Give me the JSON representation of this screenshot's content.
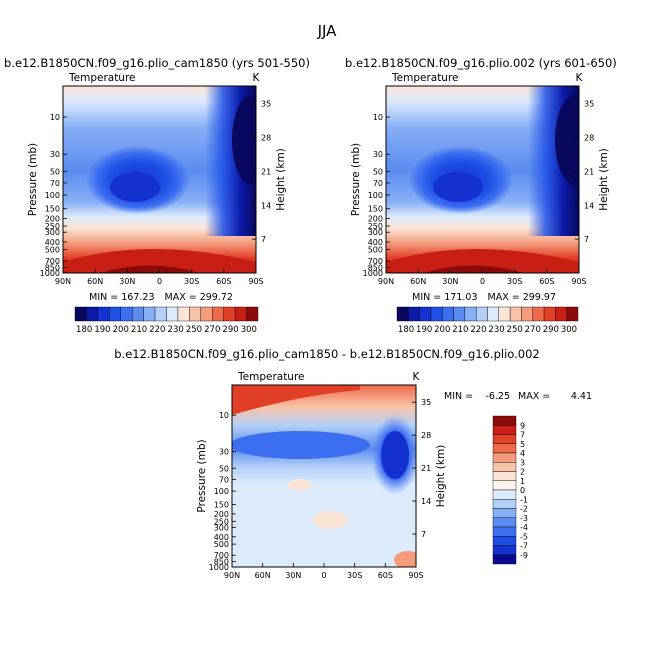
{
  "figure_title": "JJA",
  "chart_data": [
    {
      "type": "contour",
      "id": "panel1",
      "title": "b.e12.B1850CN.f09_g16.plio_cam1850 (yrs 501-550)",
      "field_label": "Temperature",
      "units": "K",
      "ylabel": "Pressure (mb)",
      "ylabel_right": "Height (km)",
      "x_ticks": [
        "90N",
        "60N",
        "30N",
        "0",
        "30S",
        "60S",
        "90S"
      ],
      "y_ticks": [
        "10",
        "30",
        "50",
        "70",
        "100",
        "150",
        "200",
        "250",
        "300",
        "400",
        "500",
        "700",
        "850",
        "1000"
      ],
      "y_ticks_right": [
        "35",
        "28",
        "21",
        "14",
        "7"
      ],
      "min_label": "MIN = 167.23",
      "max_label": "MAX = 299.72",
      "min": 167.23,
      "max": 299.72,
      "colorbar_labels": [
        "180",
        "190",
        "200",
        "210",
        "220",
        "230",
        "250",
        "270",
        "290",
        "300"
      ]
    },
    {
      "type": "contour",
      "id": "panel2",
      "title": "b.e12.B1850CN.f09_g16.plio.002 (yrs 601-650)",
      "field_label": "Temperature",
      "units": "K",
      "ylabel": "Pressure (mb)",
      "ylabel_right": "Height (km)",
      "x_ticks": [
        "90N",
        "60N",
        "30N",
        "0",
        "30S",
        "60S",
        "90S"
      ],
      "y_ticks": [
        "10",
        "30",
        "50",
        "70",
        "100",
        "150",
        "200",
        "250",
        "300",
        "400",
        "500",
        "700",
        "850",
        "1000"
      ],
      "y_ticks_right": [
        "35",
        "28",
        "21",
        "14",
        "7"
      ],
      "min_label": "MIN = 171.03",
      "max_label": "MAX = 299.97",
      "min": 171.03,
      "max": 299.97,
      "colorbar_labels": [
        "180",
        "190",
        "200",
        "210",
        "220",
        "230",
        "250",
        "270",
        "290",
        "300"
      ]
    },
    {
      "type": "contour",
      "id": "diff",
      "title": "b.e12.B1850CN.f09_g16.plio_cam1850 - b.e12.B1850CN.f09_g16.plio.002",
      "field_label": "Temperature",
      "units": "K",
      "ylabel": "Pressure (mb)",
      "ylabel_right": "Height (km)",
      "x_ticks": [
        "90N",
        "60N",
        "30N",
        "0",
        "30S",
        "60S",
        "90S"
      ],
      "y_ticks": [
        "10",
        "30",
        "50",
        "70",
        "100",
        "150",
        "200",
        "250",
        "300",
        "400",
        "500",
        "700",
        "850",
        "1000"
      ],
      "y_ticks_right": [
        "35",
        "28",
        "21",
        "14",
        "7"
      ],
      "min_label": "MIN =",
      "min_value": "-6.25",
      "max_label": "MAX =",
      "max_value": "4.41",
      "min": -6.25,
      "max": 4.41,
      "colorbar_labels": [
        "9",
        "7",
        "5",
        "4",
        "3",
        "2",
        "1",
        "0",
        "-1",
        "-2",
        "-3",
        "-4",
        "-5",
        "-7",
        "-9"
      ]
    }
  ],
  "colors": {
    "abs_scale": [
      "#08085e",
      "#0c1aa8",
      "#1432d2",
      "#1e50e6",
      "#3c6ef0",
      "#5a8cf0",
      "#87aff5",
      "#b4d0f8",
      "#dcebfc",
      "#fbe5d6",
      "#f9c3a7",
      "#f49c7c",
      "#ee6a4b",
      "#e23f27",
      "#c81e14",
      "#8c0a0a"
    ],
    "diff_scale": [
      "#8c0a0a",
      "#c81e14",
      "#e23f27",
      "#ee6a4b",
      "#f49c7c",
      "#f9c3a7",
      "#fbe5d6",
      "#fdf3ec",
      "#dcebfc",
      "#b4d0f8",
      "#87aff5",
      "#5a8cf0",
      "#3c6ef0",
      "#1e50e6",
      "#1432d2",
      "#0a0a8c"
    ]
  }
}
